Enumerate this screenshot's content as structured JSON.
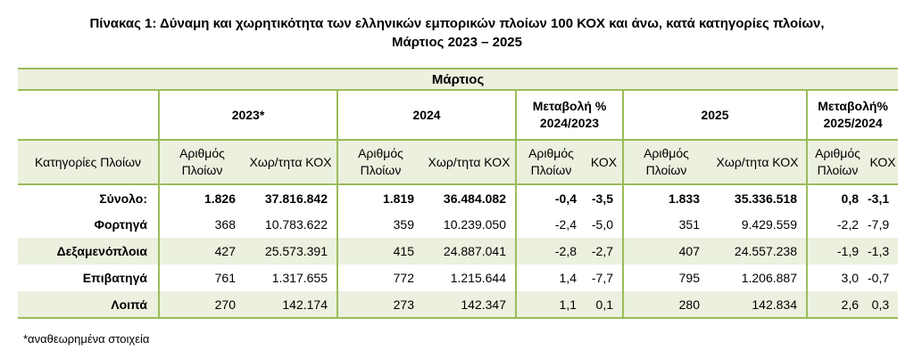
{
  "title": {
    "line1": "Πίνακας 1: Δύναμη και χωρητικότητα των ελληνικών εμπορικών πλοίων 100 ΚΟΧ και άνω, κατά κατηγορίες πλοίων,",
    "line2": "Μάρτιος 2023 – 2025"
  },
  "header": {
    "month": "Μάρτιος",
    "groups": [
      "2023*",
      "2024",
      "Μεταβολή % 2024/2023",
      "2025",
      "Μεταβολή% 2025/2024"
    ],
    "category_label": "Κατηγορίες Πλοίων",
    "sub": [
      "Αριθμός Πλοίων",
      "Χωρ/τητα ΚΟΧ",
      "Αριθμός Πλοίων",
      "Χωρ/τητα ΚΟΧ",
      "Αριθμός Πλοίων",
      "ΚΟΧ",
      "Αριθμός Πλοίων",
      "Χωρ/τητα ΚΟΧ",
      "Αριθμός Πλοίων",
      "ΚΟΧ"
    ]
  },
  "rows": [
    {
      "label": "Σύνολο:",
      "values": [
        "1.826",
        "37.816.842",
        "1.819",
        "36.484.082",
        "-0,4",
        "-3,5",
        "1.833",
        "35.336.518",
        "0,8",
        "-3,1"
      ]
    },
    {
      "label": "Φορτηγά",
      "values": [
        "368",
        "10.783.622",
        "359",
        "10.239.050",
        "-2,4",
        "-5,0",
        "351",
        "9.429.559",
        "-2,2",
        "-7,9"
      ]
    },
    {
      "label": "Δεξαμενόπλοια",
      "values": [
        "427",
        "25.573.391",
        "415",
        "24.887.041",
        "-2,8",
        "-2,7",
        "407",
        "24.557.238",
        "-1,9",
        "-1,3"
      ]
    },
    {
      "label": "Επιβατηγά",
      "values": [
        "761",
        "1.317.655",
        "772",
        "1.215.644",
        "1,4",
        "-7,7",
        "795",
        "1.206.887",
        "3,0",
        "-0,7"
      ]
    },
    {
      "label": "Λοιπά",
      "values": [
        "270",
        "142.174",
        "273",
        "142.347",
        "1,1",
        "0,1",
        "280",
        "142.834",
        "2,6",
        "0,3"
      ]
    }
  ],
  "note": "*αναθεωρημένα στοιχεία"
}
